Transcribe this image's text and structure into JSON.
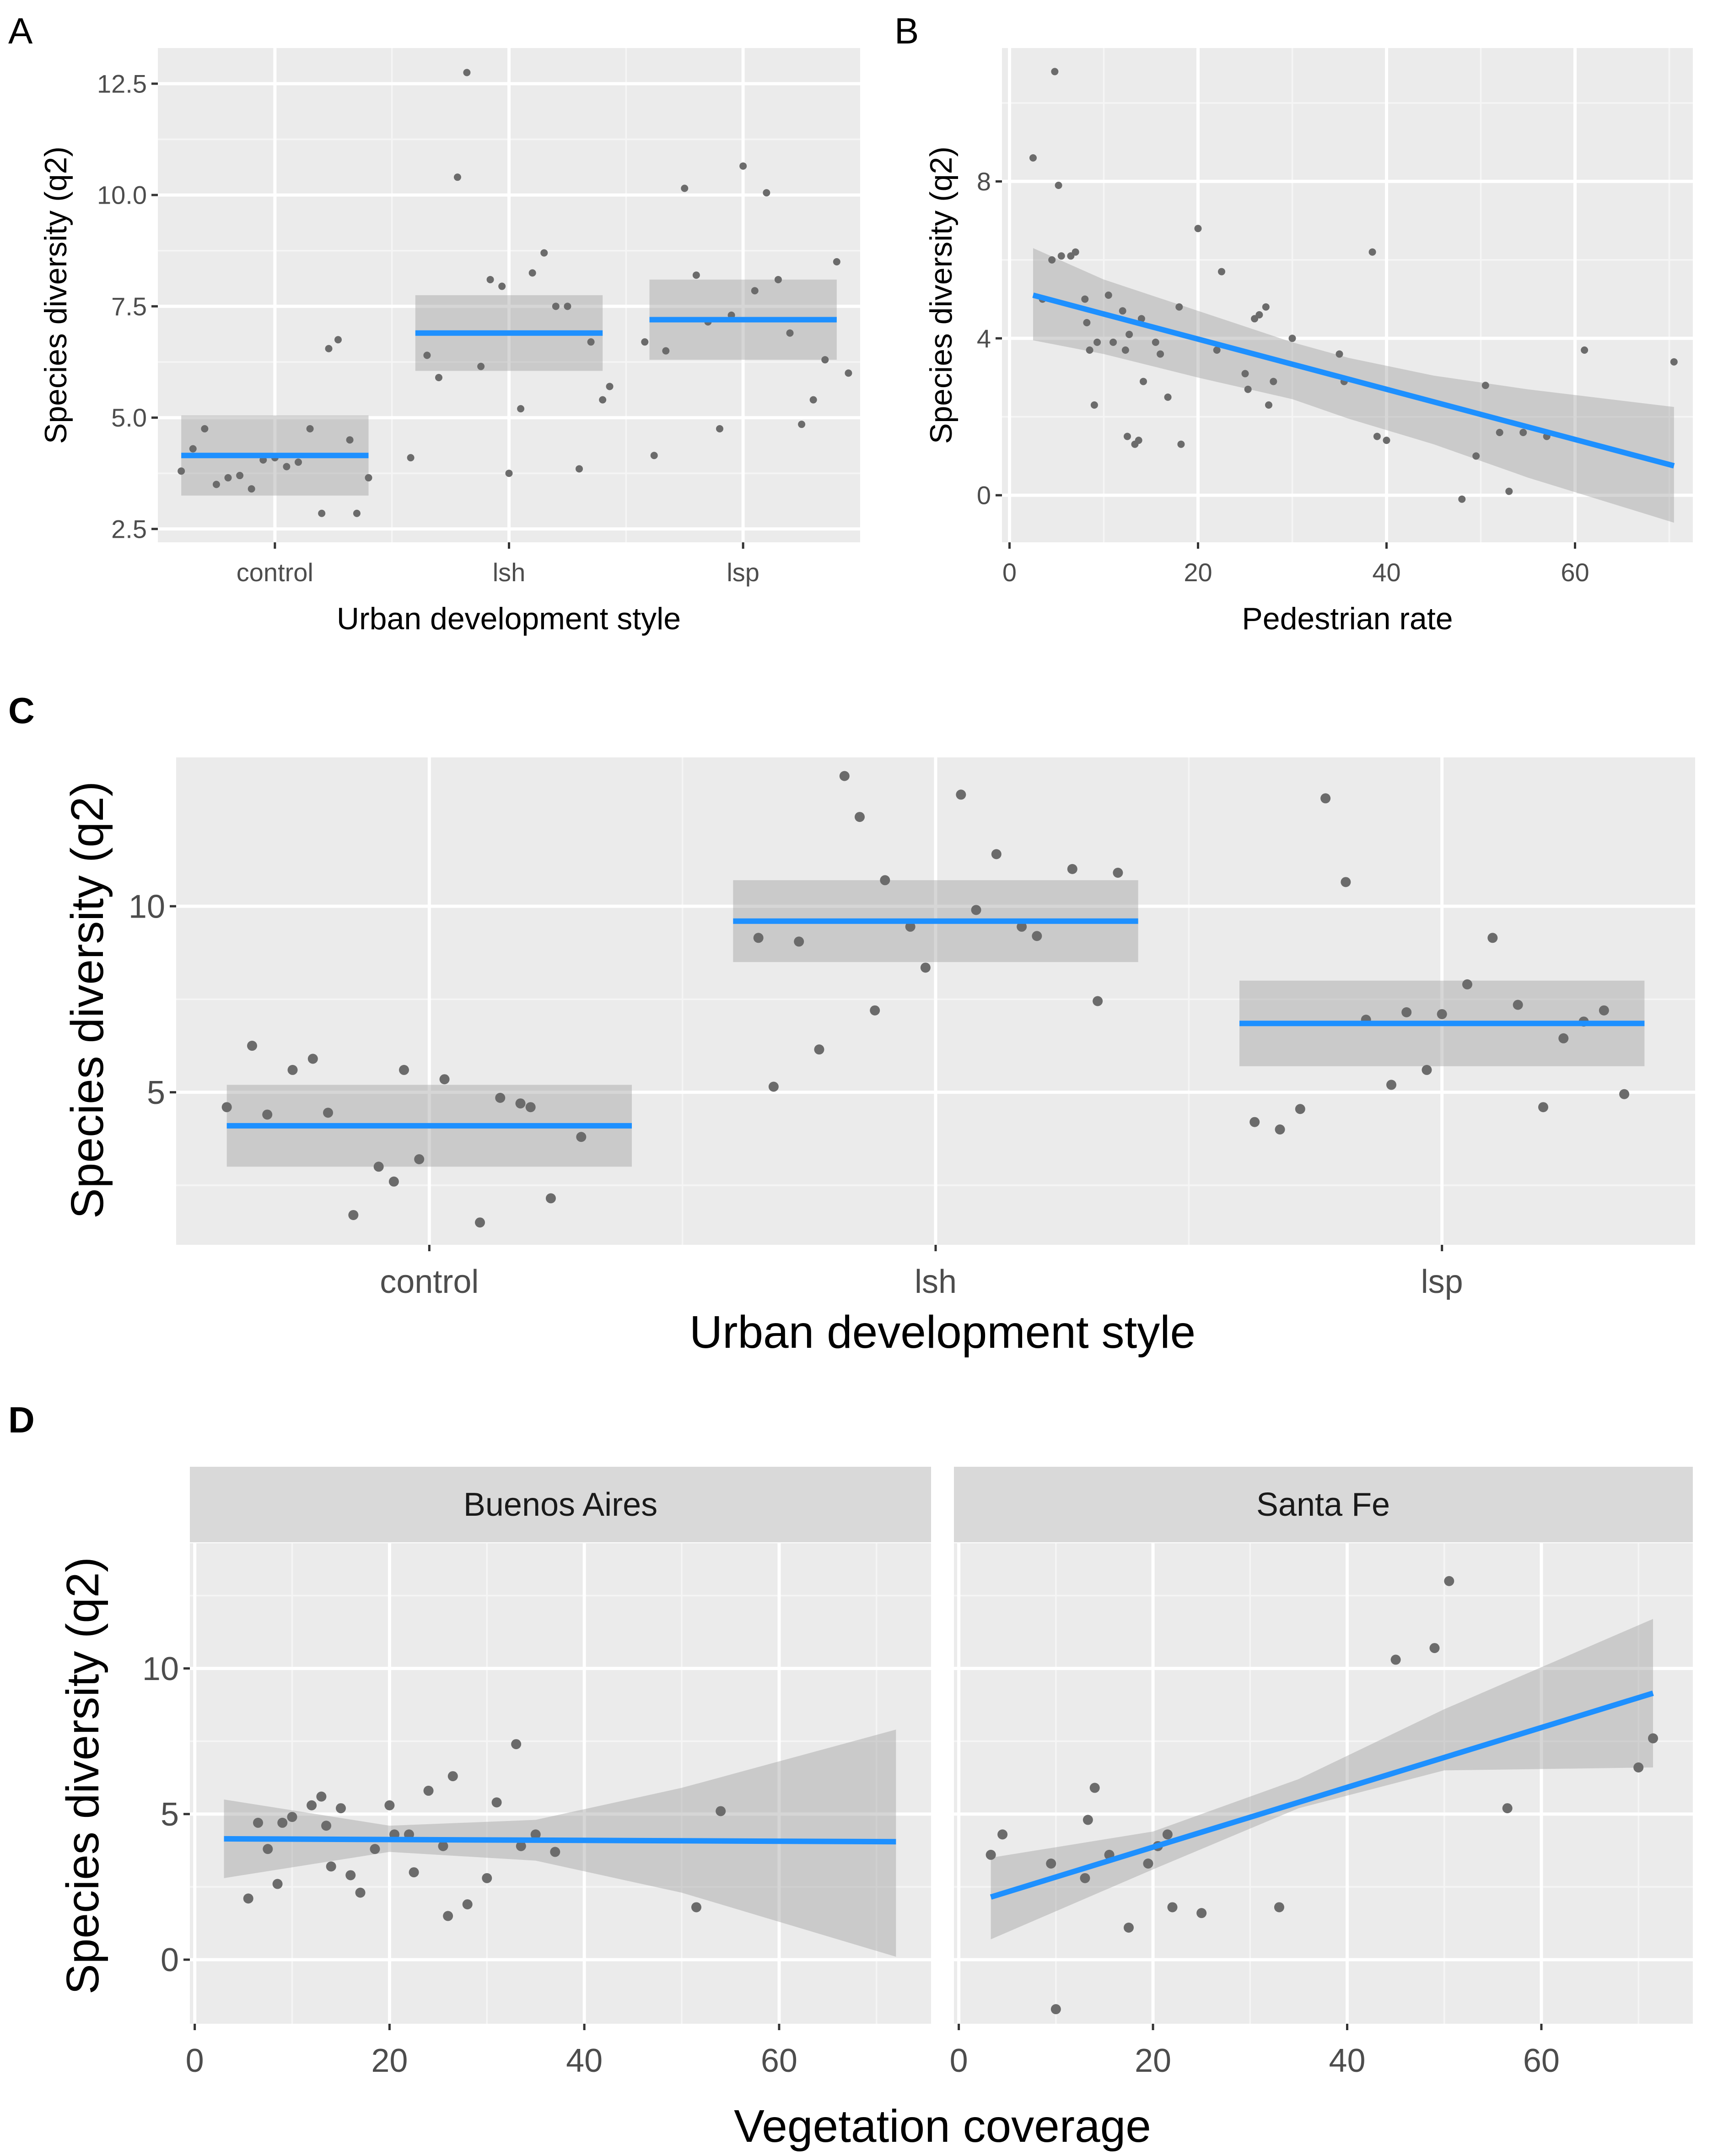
{
  "chart_data": [
    {
      "panel": "A",
      "type": "scatter",
      "title": "",
      "xlabel": "Urban development style",
      "ylabel": "Species diversity (q2)",
      "categories": [
        "control",
        "lsh",
        "lsp"
      ],
      "yticks": [
        2.5,
        5.0,
        7.5,
        10.0,
        12.5
      ],
      "ytick_labels": [
        "2.5",
        "5.0",
        "7.5",
        "10.0",
        "12.5"
      ],
      "ylim": [
        2.2,
        13.3
      ],
      "groups": [
        {
          "category": "control",
          "fit": 4.15,
          "ci": [
            3.25,
            5.05
          ],
          "points": [
            [
              -0.4,
              3.8
            ],
            [
              -0.35,
              4.3
            ],
            [
              -0.3,
              4.75
            ],
            [
              -0.25,
              3.5
            ],
            [
              -0.2,
              3.65
            ],
            [
              -0.15,
              3.7
            ],
            [
              -0.1,
              3.4
            ],
            [
              -0.05,
              4.05
            ],
            [
              0.0,
              4.1
            ],
            [
              0.05,
              3.9
            ],
            [
              0.1,
              4.0
            ],
            [
              0.15,
              4.75
            ],
            [
              0.2,
              2.85
            ],
            [
              0.23,
              6.55
            ],
            [
              0.27,
              6.75
            ],
            [
              0.32,
              4.5
            ],
            [
              0.35,
              2.85
            ],
            [
              0.4,
              3.65
            ]
          ]
        },
        {
          "category": "lsh",
          "fit": 6.9,
          "ci": [
            6.05,
            7.75
          ],
          "points": [
            [
              -0.42,
              4.1
            ],
            [
              -0.35,
              6.4
            ],
            [
              -0.3,
              5.9
            ],
            [
              -0.22,
              10.4
            ],
            [
              -0.18,
              12.75
            ],
            [
              -0.12,
              6.15
            ],
            [
              -0.08,
              8.1
            ],
            [
              -0.03,
              7.95
            ],
            [
              0.0,
              3.75
            ],
            [
              0.05,
              5.2
            ],
            [
              0.1,
              8.25
            ],
            [
              0.15,
              8.7
            ],
            [
              0.2,
              7.5
            ],
            [
              0.25,
              7.5
            ],
            [
              0.3,
              3.85
            ],
            [
              0.35,
              6.7
            ],
            [
              0.4,
              5.4
            ],
            [
              0.43,
              5.7
            ]
          ]
        },
        {
          "category": "lsp",
          "fit": 7.2,
          "ci": [
            6.3,
            8.1
          ],
          "points": [
            [
              -0.42,
              6.7
            ],
            [
              -0.38,
              4.15
            ],
            [
              -0.33,
              6.5
            ],
            [
              -0.25,
              10.15
            ],
            [
              -0.2,
              8.2
            ],
            [
              -0.15,
              7.15
            ],
            [
              -0.1,
              4.75
            ],
            [
              -0.05,
              7.3
            ],
            [
              0.0,
              10.65
            ],
            [
              0.05,
              7.85
            ],
            [
              0.1,
              10.05
            ],
            [
              0.15,
              8.1
            ],
            [
              0.2,
              6.9
            ],
            [
              0.25,
              4.85
            ],
            [
              0.3,
              5.4
            ],
            [
              0.35,
              6.3
            ],
            [
              0.4,
              8.5
            ],
            [
              0.45,
              6.0
            ]
          ]
        }
      ]
    },
    {
      "panel": "B",
      "type": "scatter",
      "title": "",
      "xlabel": "Pedestrian rate",
      "ylabel": "Species diversity (q2)",
      "xticks": [
        0,
        20,
        40,
        60
      ],
      "xtick_labels": [
        "0",
        "20",
        "40",
        "60"
      ],
      "yticks": [
        0,
        4,
        8
      ],
      "ytick_labels": [
        "0",
        "4",
        "8"
      ],
      "xlim": [
        -0.8,
        72.5
      ],
      "ylim": [
        -1.2,
        11.4
      ],
      "fit": {
        "x": [
          2.5,
          70.5
        ],
        "y": [
          5.1,
          0.75
        ]
      },
      "ci": {
        "x": [
          2.5,
          10,
          20,
          30,
          36,
          45,
          55,
          70.5
        ],
        "upper": [
          6.3,
          5.5,
          4.7,
          3.9,
          3.5,
          3.05,
          2.7,
          2.25
        ],
        "lower": [
          3.95,
          3.6,
          3.0,
          2.45,
          1.95,
          1.3,
          0.45,
          -0.7
        ]
      },
      "points": [
        [
          2.5,
          8.6
        ],
        [
          3.5,
          5.0
        ],
        [
          4.5,
          6.0
        ],
        [
          4.8,
          10.8
        ],
        [
          5.2,
          7.9
        ],
        [
          5.5,
          6.1
        ],
        [
          6.5,
          6.1
        ],
        [
          7.0,
          6.2
        ],
        [
          8.0,
          5.0
        ],
        [
          8.2,
          4.4
        ],
        [
          8.5,
          3.7
        ],
        [
          9.0,
          2.3
        ],
        [
          9.3,
          3.9
        ],
        [
          10.5,
          5.1
        ],
        [
          11.0,
          3.9
        ],
        [
          12.0,
          4.7
        ],
        [
          12.3,
          3.7
        ],
        [
          12.5,
          1.5
        ],
        [
          12.7,
          4.1
        ],
        [
          13.3,
          1.3
        ],
        [
          13.7,
          1.4
        ],
        [
          14.0,
          4.5
        ],
        [
          14.2,
          2.9
        ],
        [
          15.5,
          3.9
        ],
        [
          16.0,
          3.6
        ],
        [
          16.8,
          2.5
        ],
        [
          18.0,
          4.8
        ],
        [
          18.2,
          1.3
        ],
        [
          20.0,
          6.8
        ],
        [
          22.0,
          3.7
        ],
        [
          22.5,
          5.7
        ],
        [
          25.0,
          3.1
        ],
        [
          25.3,
          2.7
        ],
        [
          26.0,
          4.5
        ],
        [
          26.5,
          4.6
        ],
        [
          27.2,
          4.8
        ],
        [
          27.5,
          2.3
        ],
        [
          28.0,
          2.9
        ],
        [
          30.0,
          4.0
        ],
        [
          35.0,
          3.6
        ],
        [
          35.5,
          2.9
        ],
        [
          38.5,
          6.2
        ],
        [
          39.0,
          1.5
        ],
        [
          40.0,
          1.4
        ],
        [
          48.0,
          -0.1
        ],
        [
          49.5,
          1.0
        ],
        [
          50.5,
          2.8
        ],
        [
          52.0,
          1.6
        ],
        [
          53.0,
          0.1
        ],
        [
          54.5,
          1.6
        ],
        [
          57.0,
          1.5
        ],
        [
          61.0,
          3.7
        ],
        [
          70.5,
          3.4
        ]
      ]
    },
    {
      "panel": "C",
      "type": "scatter",
      "title": "",
      "xlabel": "Urban development style",
      "ylabel": "Species diversity (q2)",
      "categories": [
        "control",
        "lsh",
        "lsp"
      ],
      "yticks": [
        5,
        10
      ],
      "ytick_labels": [
        "5",
        "10"
      ],
      "ylim": [
        0.9,
        14.0
      ],
      "groups": [
        {
          "category": "control",
          "fit": 4.1,
          "ci": [
            3.0,
            5.2
          ],
          "points": [
            [
              -0.4,
              4.6
            ],
            [
              -0.35,
              6.25
            ],
            [
              -0.32,
              4.4
            ],
            [
              -0.27,
              5.6
            ],
            [
              -0.23,
              5.9
            ],
            [
              -0.2,
              4.45
            ],
            [
              -0.15,
              1.7
            ],
            [
              -0.1,
              3.0
            ],
            [
              -0.07,
              2.6
            ],
            [
              -0.05,
              5.6
            ],
            [
              -0.02,
              3.2
            ],
            [
              0.03,
              5.35
            ],
            [
              0.1,
              1.5
            ],
            [
              0.14,
              4.85
            ],
            [
              0.18,
              4.7
            ],
            [
              0.2,
              4.6
            ],
            [
              0.24,
              2.15
            ],
            [
              0.3,
              3.8
            ]
          ]
        },
        {
          "category": "lsh",
          "fit": 9.6,
          "ci": [
            8.5,
            10.7
          ],
          "points": [
            [
              -0.35,
              9.15
            ],
            [
              -0.32,
              5.15
            ],
            [
              -0.27,
              9.05
            ],
            [
              -0.23,
              6.15
            ],
            [
              -0.18,
              13.5
            ],
            [
              -0.15,
              12.4
            ],
            [
              -0.12,
              7.2
            ],
            [
              -0.1,
              10.7
            ],
            [
              -0.05,
              9.45
            ],
            [
              -0.02,
              8.35
            ],
            [
              0.05,
              13.0
            ],
            [
              0.08,
              9.9
            ],
            [
              0.12,
              11.4
            ],
            [
              0.17,
              9.45
            ],
            [
              0.2,
              9.2
            ],
            [
              0.27,
              11.0
            ],
            [
              0.32,
              7.45
            ],
            [
              0.36,
              10.9
            ]
          ]
        },
        {
          "category": "lsp",
          "fit": 6.85,
          "ci": [
            5.7,
            8.0
          ],
          "points": [
            [
              -0.37,
              4.2
            ],
            [
              -0.32,
              4.0
            ],
            [
              -0.28,
              4.55
            ],
            [
              -0.23,
              12.9
            ],
            [
              -0.19,
              10.65
            ],
            [
              -0.15,
              6.95
            ],
            [
              -0.1,
              5.2
            ],
            [
              -0.07,
              7.15
            ],
            [
              -0.03,
              5.6
            ],
            [
              0.0,
              7.1
            ],
            [
              0.05,
              7.9
            ],
            [
              0.1,
              9.15
            ],
            [
              0.15,
              7.35
            ],
            [
              0.2,
              4.6
            ],
            [
              0.24,
              6.45
            ],
            [
              0.28,
              6.9
            ],
            [
              0.32,
              7.2
            ],
            [
              0.36,
              4.95
            ]
          ]
        }
      ]
    },
    {
      "panel": "D",
      "type": "scatter",
      "title": "",
      "xlabel": "Vegetation coverage",
      "ylabel": "Species diversity (q2)",
      "xticks": [
        0,
        20,
        40,
        60
      ],
      "xtick_labels": [
        "0",
        "20",
        "40",
        "60"
      ],
      "yticks": [
        0,
        5,
        10
      ],
      "ytick_labels": [
        "0",
        "5",
        "10"
      ],
      "xlim": [
        -0.5,
        75.6
      ],
      "ylim": [
        -2.2,
        14.3
      ],
      "facets": [
        {
          "name": "Buenos Aires",
          "fit": {
            "x": [
              3,
              72
            ],
            "y": [
              4.15,
              4.05
            ]
          },
          "ci": {
            "x": [
              3,
              20,
              35,
              50,
              72
            ],
            "upper": [
              5.5,
              4.6,
              4.8,
              5.9,
              7.9
            ],
            "lower": [
              2.8,
              3.7,
              3.4,
              2.3,
              0.1
            ]
          },
          "points": [
            [
              5.5,
              2.1
            ],
            [
              6.5,
              4.7
            ],
            [
              7.5,
              3.8
            ],
            [
              8.5,
              2.6
            ],
            [
              9.0,
              4.7
            ],
            [
              10.0,
              4.9
            ],
            [
              12.0,
              5.3
            ],
            [
              13.0,
              5.6
            ],
            [
              13.5,
              4.6
            ],
            [
              14.0,
              3.2
            ],
            [
              15.0,
              5.2
            ],
            [
              16.0,
              2.9
            ],
            [
              17.0,
              2.3
            ],
            [
              18.5,
              3.8
            ],
            [
              20.0,
              5.3
            ],
            [
              20.5,
              4.3
            ],
            [
              22.0,
              4.3
            ],
            [
              22.5,
              3.0
            ],
            [
              24.0,
              5.8
            ],
            [
              25.5,
              3.9
            ],
            [
              26.0,
              1.5
            ],
            [
              26.5,
              6.3
            ],
            [
              28.0,
              1.9
            ],
            [
              30.0,
              2.8
            ],
            [
              31.0,
              5.4
            ],
            [
              33.0,
              7.4
            ],
            [
              33.5,
              3.9
            ],
            [
              35.0,
              4.3
            ],
            [
              37.0,
              3.7
            ],
            [
              51.5,
              1.8
            ],
            [
              54.0,
              5.1
            ]
          ]
        },
        {
          "name": "Santa Fe",
          "fit": {
            "x": [
              3.3,
              71.5
            ],
            "y": [
              2.15,
              9.15
            ]
          },
          "ci": {
            "x": [
              3.3,
              20,
              35,
              50,
              71.5
            ],
            "upper": [
              3.5,
              4.4,
              6.2,
              8.6,
              11.7
            ],
            "lower": [
              0.7,
              3.1,
              5.2,
              6.5,
              6.6
            ]
          },
          "points": [
            [
              3.3,
              3.6
            ],
            [
              4.5,
              4.3
            ],
            [
              9.5,
              3.3
            ],
            [
              10.0,
              -1.7
            ],
            [
              13.0,
              2.8
            ],
            [
              13.3,
              4.8
            ],
            [
              14.0,
              5.9
            ],
            [
              15.5,
              3.6
            ],
            [
              17.5,
              1.1
            ],
            [
              19.5,
              3.3
            ],
            [
              20.5,
              3.9
            ],
            [
              21.5,
              4.3
            ],
            [
              22.0,
              1.8
            ],
            [
              25.0,
              1.6
            ],
            [
              33.0,
              1.8
            ],
            [
              45.0,
              10.3
            ],
            [
              49.0,
              10.7
            ],
            [
              50.5,
              13.0
            ],
            [
              56.5,
              5.2
            ],
            [
              70.0,
              6.6
            ],
            [
              71.5,
              7.6
            ]
          ]
        }
      ]
    }
  ]
}
